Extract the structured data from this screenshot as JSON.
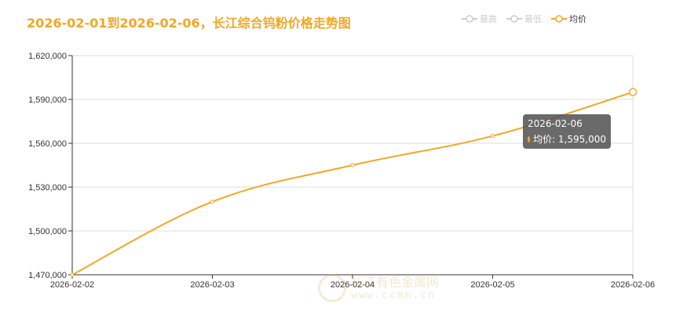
{
  "title": "2026-02-01到2026-02-06，长江综合钨粉价格走势图",
  "legend": [
    {
      "name": "最高",
      "color": "#cccccc"
    },
    {
      "name": "最低",
      "color": "#cccccc"
    },
    {
      "name": "均价",
      "color": "#f5a623"
    }
  ],
  "tooltip": {
    "date": "2026-02-06",
    "label": "均价: 1,595,000"
  },
  "watermark": {
    "name": "长江有色金属网",
    "url": "www.ccmn.cn"
  },
  "chart_data": {
    "type": "line",
    "x": [
      "2026-02-02",
      "2026-02-03",
      "2026-02-04",
      "2026-02-05",
      "2026-02-06"
    ],
    "series": [
      {
        "name": "均价",
        "color": "#f5a623",
        "values": [
          1470000,
          1520000,
          1545000,
          1565000,
          1595000
        ]
      }
    ],
    "yticks": [
      "1,470,000",
      "1,500,000",
      "1,530,000",
      "1,560,000",
      "1,590,000",
      "1,620,000"
    ],
    "ylim": [
      1470000,
      1620000
    ],
    "grid": true,
    "legend_position": "top-right"
  }
}
